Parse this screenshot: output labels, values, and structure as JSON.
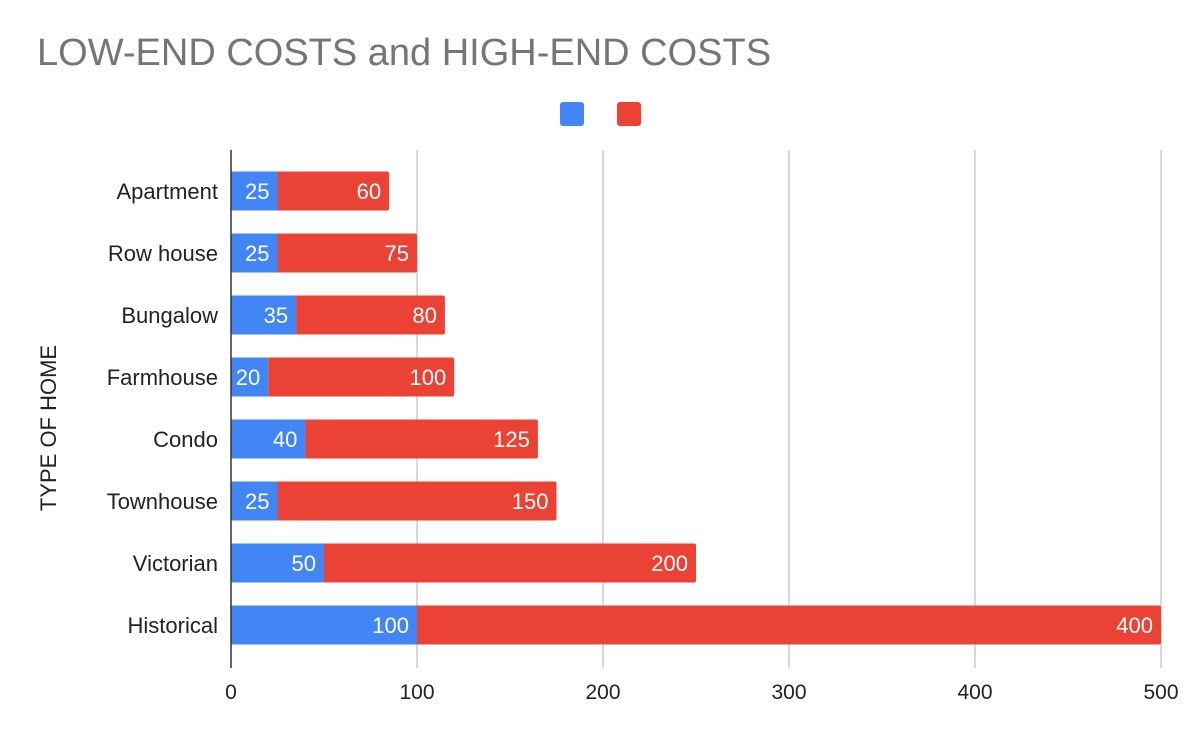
{
  "chart_data": {
    "type": "bar",
    "orientation": "horizontal",
    "stacked": true,
    "title": "LOW-END COSTS and HIGH-END COSTS",
    "ylabel": "TYPE OF HOME",
    "xlabel": "",
    "categories": [
      "Apartment",
      "Row house",
      "Bungalow",
      "Farmhouse",
      "Condo",
      "Townhouse",
      "Victorian",
      "Historical"
    ],
    "series": [
      {
        "values": [
          25,
          25,
          35,
          20,
          40,
          25,
          50,
          100
        ],
        "color": "#4285F4"
      },
      {
        "values": [
          60,
          75,
          80,
          100,
          125,
          150,
          200,
          400
        ],
        "color": "#EA4335"
      }
    ],
    "xlim": [
      0,
      500
    ],
    "xticks": [
      "0",
      "100",
      "200",
      "300",
      "400",
      "500"
    ],
    "grid": "vertical",
    "legend": "top-center",
    "data_labels": true
  }
}
